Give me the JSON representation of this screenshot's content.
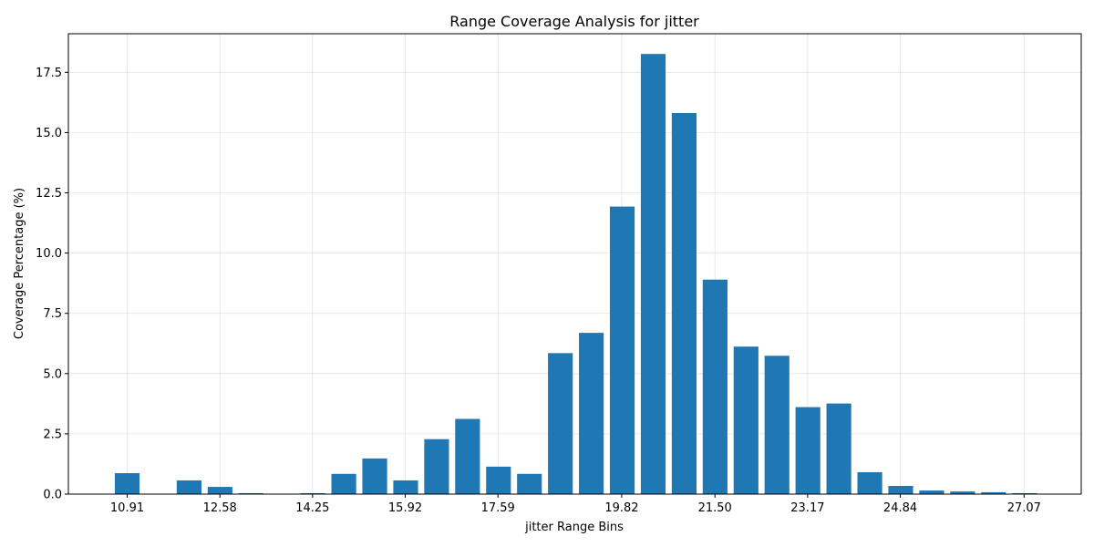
{
  "chart_data": {
    "type": "bar",
    "title": "Range Coverage Analysis for jitter",
    "xlabel": "jitter Range Bins",
    "ylabel": "Coverage Percentage (%)",
    "ylim": [
      0,
      19.1
    ],
    "xlim": [
      9.85,
      28.1
    ],
    "bar_color": "#1f77b4",
    "grid": true,
    "bin_width": 0.5575,
    "bin_starts": [
      10.91,
      11.4675,
      12.025,
      12.5825,
      13.14,
      13.6975,
      14.255,
      14.8125,
      15.37,
      15.9275,
      16.485,
      17.0425,
      17.6,
      18.1575,
      18.715,
      19.2725,
      19.83,
      20.3875,
      20.945,
      21.5025,
      22.06,
      22.6175,
      23.175,
      23.7325,
      24.29,
      24.8475,
      25.405,
      25.9625,
      26.52,
      27.0775
    ],
    "values": [
      0.87,
      0.0,
      0.57,
      0.3,
      0.04,
      0.0,
      0.04,
      0.84,
      1.48,
      0.57,
      2.28,
      3.12,
      1.14,
      0.84,
      5.85,
      6.69,
      11.93,
      18.26,
      15.81,
      8.9,
      6.12,
      5.74,
      3.61,
      3.76,
      0.91,
      0.34,
      0.15,
      0.11,
      0.08,
      0.04
    ],
    "x_ticks": [
      10.91,
      12.58,
      14.25,
      15.92,
      17.59,
      19.82,
      21.5,
      23.17,
      24.84,
      27.07
    ],
    "x_tick_labels": [
      "10.91",
      "12.58",
      "14.25",
      "15.92",
      "17.59",
      "19.82",
      "21.50",
      "23.17",
      "24.84",
      "27.07"
    ],
    "y_ticks": [
      0,
      2.5,
      5,
      7.5,
      10,
      12.5,
      15,
      17.5
    ],
    "y_tick_labels": [
      "0.0",
      "2.5",
      "5.0",
      "7.5",
      "10.0",
      "12.5",
      "15.0",
      "17.5"
    ]
  }
}
